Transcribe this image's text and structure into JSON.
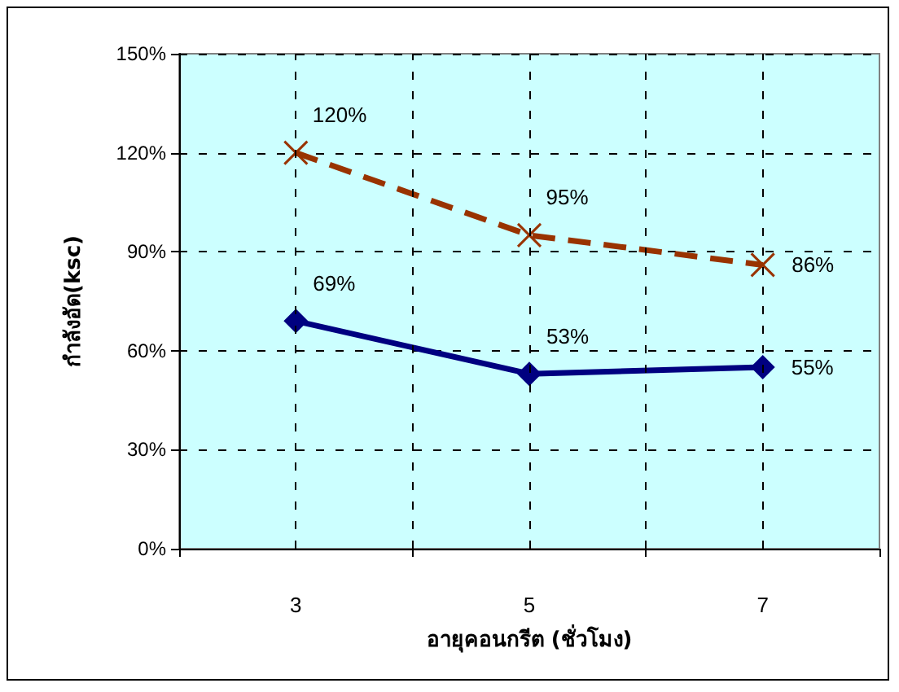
{
  "chart_data": {
    "type": "line",
    "xlabel": "อายุคอนกรีต (ชั่วโมง)",
    "ylabel": "กำลังอัด(ksc)",
    "x": [
      3,
      5,
      7
    ],
    "xlim": [
      2,
      8
    ],
    "xticks": [
      {
        "value": 2,
        "label": null
      },
      3,
      {
        "value": 4,
        "label": null
      },
      5,
      {
        "value": 6,
        "label": null
      },
      7,
      {
        "value": 8,
        "label": null
      }
    ],
    "ylim": [
      0,
      150
    ],
    "yticks": [
      {
        "value": 0,
        "label": "0%"
      },
      {
        "value": 30,
        "label": "30%"
      },
      {
        "value": 60,
        "label": "60%"
      },
      {
        "value": 90,
        "label": "90%"
      },
      {
        "value": 120,
        "label": "120%"
      },
      {
        "value": 150,
        "label": "150%"
      }
    ],
    "grid": true,
    "series": [
      {
        "color": "#000080",
        "marker": "diamond",
        "line_style": "solid",
        "values": [
          69,
          53,
          55
        ],
        "value_labels": [
          "69%",
          "53%",
          "55%"
        ]
      },
      {
        "color": "#993300",
        "marker": "cross",
        "line_style": "dashed",
        "values": [
          120,
          95,
          86
        ],
        "value_labels": [
          "120%",
          "95%",
          "86%"
        ]
      }
    ]
  }
}
